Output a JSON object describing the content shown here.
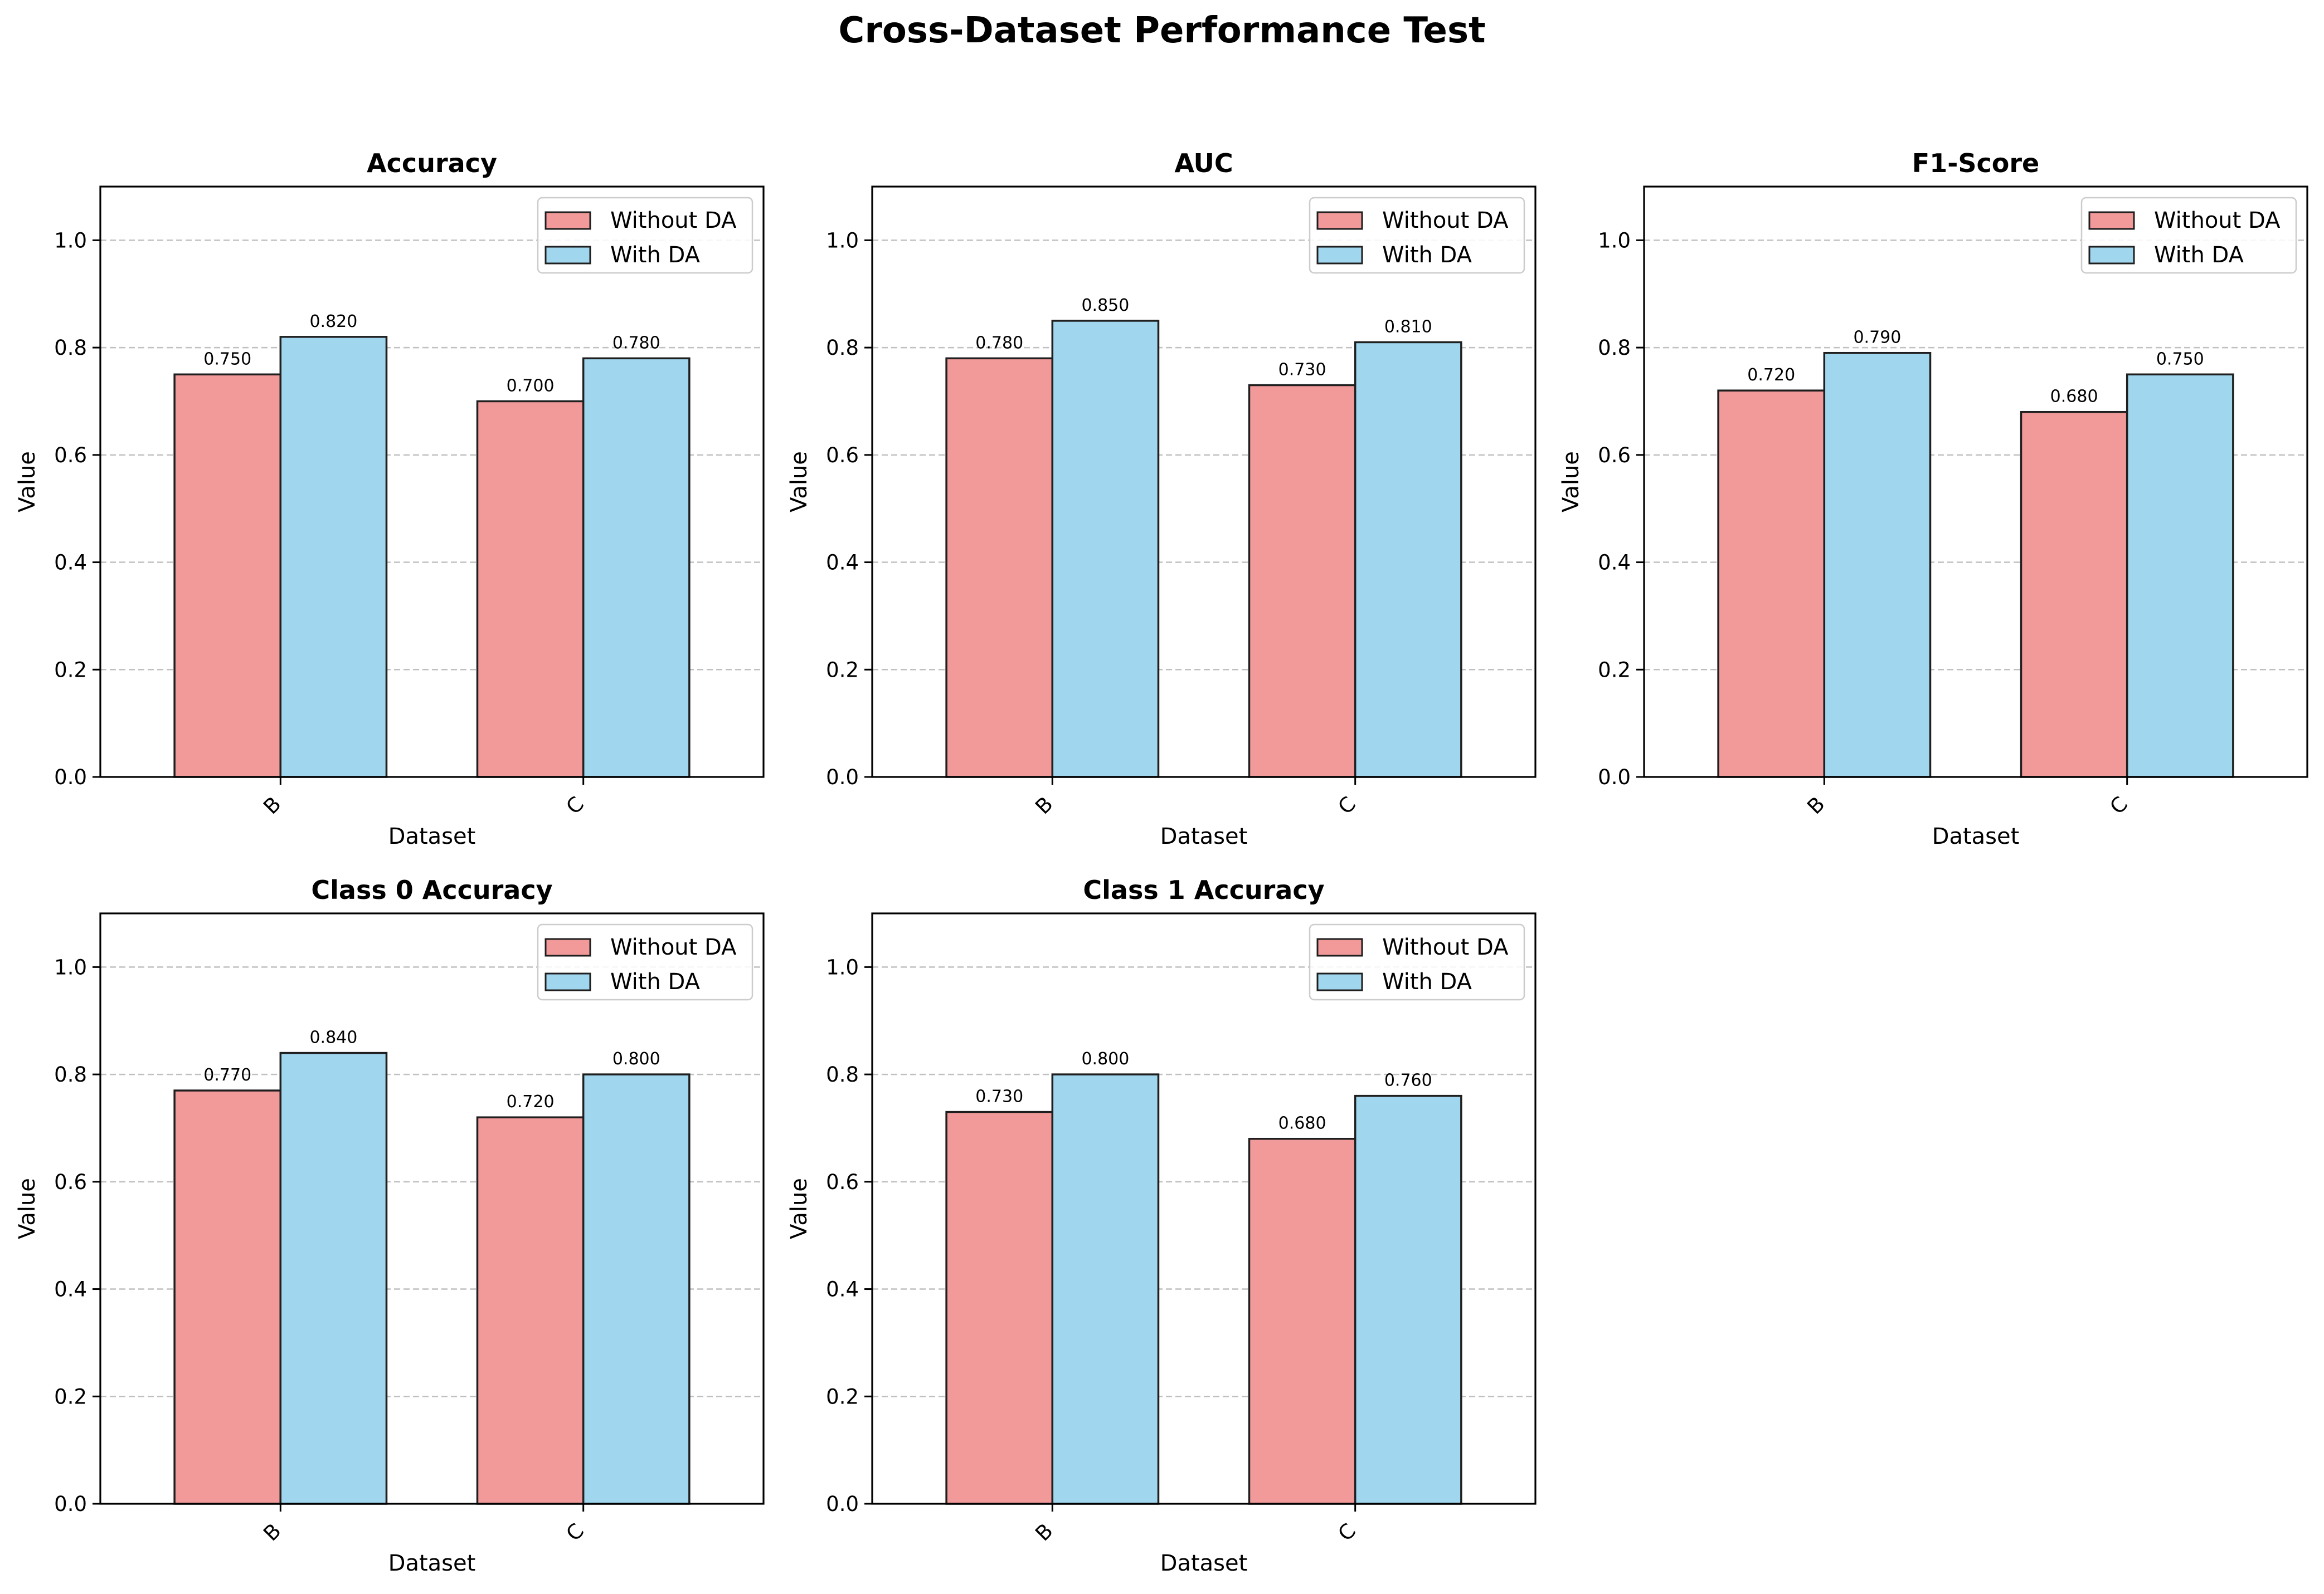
{
  "title": "Cross-Dataset Performance Test",
  "colors": {
    "without_da": "#F29A9A",
    "with_da": "#A0D6EE",
    "edge": "#1f1f1f",
    "grid": "#c0c0c0"
  },
  "chart_data": [
    {
      "type": "bar",
      "title": "Accuracy",
      "xlabel": "Dataset",
      "ylabel": "Value",
      "categories": [
        "B",
        "C"
      ],
      "ylim": [
        0,
        1.1
      ],
      "yticks": [
        "0.0",
        "0.2",
        "0.4",
        "0.6",
        "0.8",
        "1.0"
      ],
      "grid": "y-dashed",
      "legend": "top-right",
      "series": [
        {
          "name": "Without DA",
          "values": [
            0.75,
            0.7
          ],
          "labels": [
            "0.750",
            "0.700"
          ]
        },
        {
          "name": "With DA",
          "values": [
            0.82,
            0.78
          ],
          "labels": [
            "0.820",
            "0.780"
          ]
        }
      ]
    },
    {
      "type": "bar",
      "title": "AUC",
      "xlabel": "Dataset",
      "ylabel": "Value",
      "categories": [
        "B",
        "C"
      ],
      "ylim": [
        0,
        1.1
      ],
      "yticks": [
        "0.0",
        "0.2",
        "0.4",
        "0.6",
        "0.8",
        "1.0"
      ],
      "grid": "y-dashed",
      "legend": "top-right",
      "series": [
        {
          "name": "Without DA",
          "values": [
            0.78,
            0.73
          ],
          "labels": [
            "0.780",
            "0.730"
          ]
        },
        {
          "name": "With DA",
          "values": [
            0.85,
            0.81
          ],
          "labels": [
            "0.850",
            "0.810"
          ]
        }
      ]
    },
    {
      "type": "bar",
      "title": "F1-Score",
      "xlabel": "Dataset",
      "ylabel": "Value",
      "categories": [
        "B",
        "C"
      ],
      "ylim": [
        0,
        1.1
      ],
      "yticks": [
        "0.0",
        "0.2",
        "0.4",
        "0.6",
        "0.8",
        "1.0"
      ],
      "grid": "y-dashed",
      "legend": "top-right",
      "series": [
        {
          "name": "Without DA",
          "values": [
            0.72,
            0.68
          ],
          "labels": [
            "0.720",
            "0.680"
          ]
        },
        {
          "name": "With DA",
          "values": [
            0.79,
            0.75
          ],
          "labels": [
            "0.790",
            "0.750"
          ]
        }
      ]
    },
    {
      "type": "bar",
      "title": "Class 0 Accuracy",
      "xlabel": "Dataset",
      "ylabel": "Value",
      "categories": [
        "B",
        "C"
      ],
      "ylim": [
        0,
        1.1
      ],
      "yticks": [
        "0.0",
        "0.2",
        "0.4",
        "0.6",
        "0.8",
        "1.0"
      ],
      "grid": "y-dashed",
      "legend": "top-right",
      "series": [
        {
          "name": "Without DA",
          "values": [
            0.77,
            0.72
          ],
          "labels": [
            "0.770",
            "0.720"
          ]
        },
        {
          "name": "With DA",
          "values": [
            0.84,
            0.8
          ],
          "labels": [
            "0.840",
            "0.800"
          ]
        }
      ]
    },
    {
      "type": "bar",
      "title": "Class 1 Accuracy",
      "xlabel": "Dataset",
      "ylabel": "Value",
      "categories": [
        "B",
        "C"
      ],
      "ylim": [
        0,
        1.1
      ],
      "yticks": [
        "0.0",
        "0.2",
        "0.4",
        "0.6",
        "0.8",
        "1.0"
      ],
      "grid": "y-dashed",
      "legend": "top-right",
      "series": [
        {
          "name": "Without DA",
          "values": [
            0.73,
            0.68
          ],
          "labels": [
            "0.730",
            "0.680"
          ]
        },
        {
          "name": "With DA",
          "values": [
            0.8,
            0.76
          ],
          "labels": [
            "0.800",
            "0.760"
          ]
        }
      ]
    }
  ]
}
